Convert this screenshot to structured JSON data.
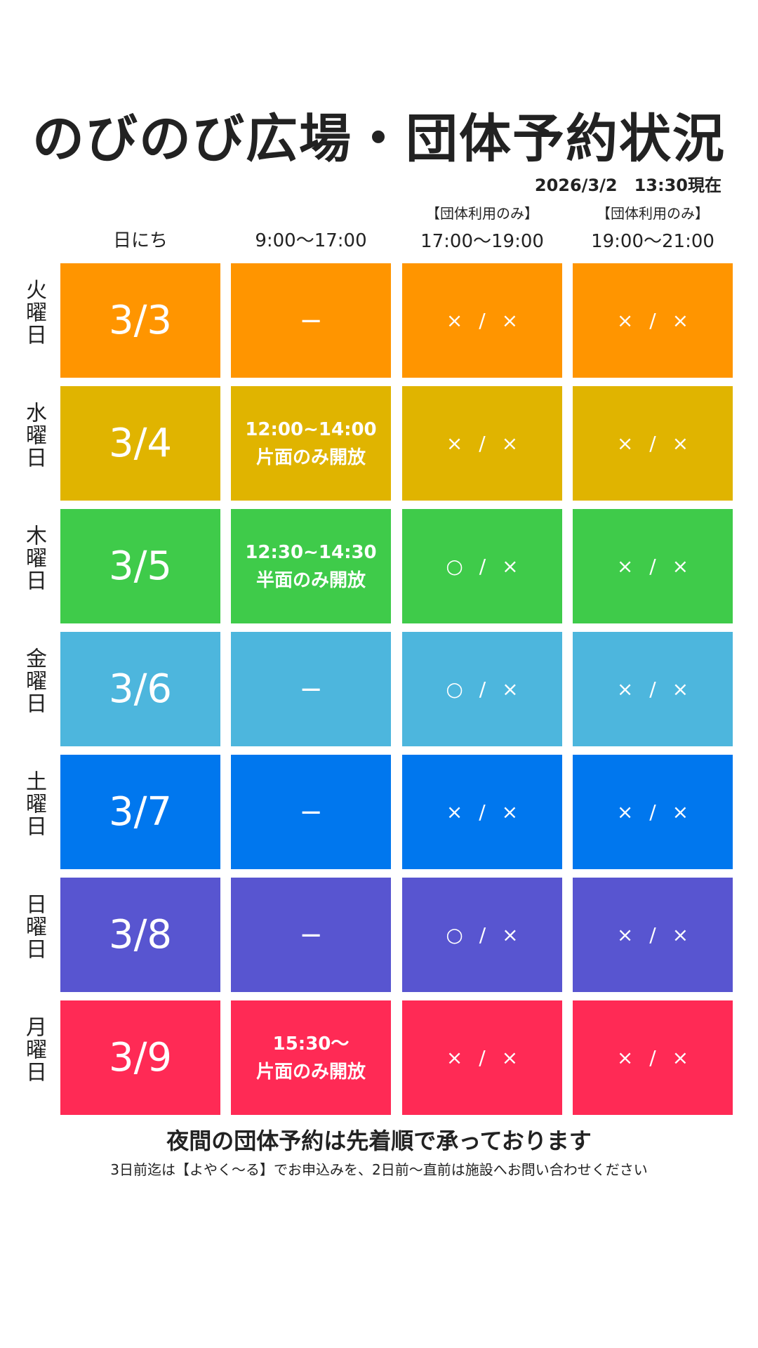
{
  "title": "のびのび広場・団体予約状況",
  "updated": "2026/3/2　13:30現在",
  "headers": [
    {
      "note": "",
      "label": "日にち"
    },
    {
      "note": "",
      "label": "9:00〜17:00"
    },
    {
      "note": "【団体利用のみ】",
      "label": "17:00〜19:00"
    },
    {
      "note": "【団体利用のみ】",
      "label": "19:00〜21:00"
    }
  ],
  "rows": [
    {
      "weekday": "火曜日",
      "date": "3/3",
      "color": "#FF9500",
      "day_slot": "−",
      "evening1": "× / ×",
      "evening2": "× / ×"
    },
    {
      "weekday": "水曜日",
      "date": "3/4",
      "color": "#E0B400",
      "day_slot": "12:00~14:00\n片面のみ開放",
      "evening1": "× / ×",
      "evening2": "× / ×"
    },
    {
      "weekday": "木曜日",
      "date": "3/5",
      "color": "#3FCB4A",
      "day_slot": "12:30~14:30\n半面のみ開放",
      "evening1": "○ / ×",
      "evening2": "× / ×"
    },
    {
      "weekday": "金曜日",
      "date": "3/6",
      "color": "#4DB6DD",
      "day_slot": "−",
      "evening1": "○ / ×",
      "evening2": "× / ×"
    },
    {
      "weekday": "土曜日",
      "date": "3/7",
      "color": "#0077EE",
      "day_slot": "−",
      "evening1": "× / ×",
      "evening2": "× / ×"
    },
    {
      "weekday": "日曜日",
      "date": "3/8",
      "color": "#5855D0",
      "day_slot": "−",
      "evening1": "○ / ×",
      "evening2": "× / ×"
    },
    {
      "weekday": "月曜日",
      "date": "3/9",
      "color": "#FF2A55",
      "day_slot": "15:30〜\n片面のみ開放",
      "evening1": "× / ×",
      "evening2": "× / ×"
    }
  ],
  "footer": {
    "main": "夜間の団体予約は先着順で承っております",
    "sub": "3日前迄は【よやく〜る】でお申込みを、2日前〜直前は施設へお問い合わせください"
  }
}
